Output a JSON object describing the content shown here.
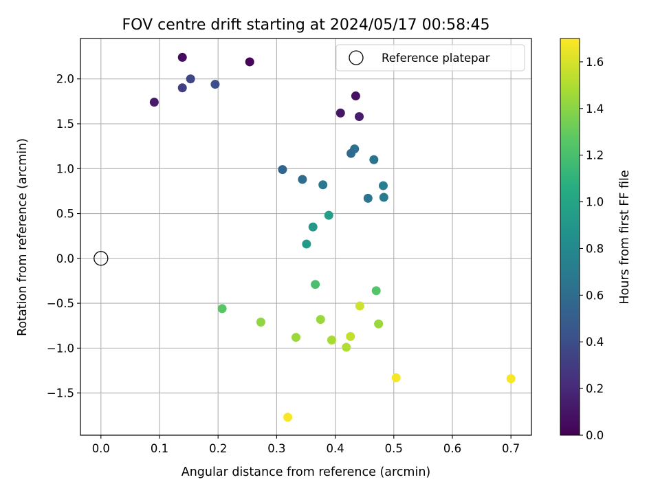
{
  "chart_data": {
    "type": "scatter",
    "title": "FOV centre drift starting at 2024/05/17 00:58:45",
    "xlabel": "Angular distance from reference (arcmin)",
    "ylabel": "Rotation from reference (arcmin)",
    "xlim": [
      -0.035,
      0.735
    ],
    "ylim": [
      -1.97,
      2.45
    ],
    "x_ticks": [
      0.0,
      0.1,
      0.2,
      0.3,
      0.4,
      0.5,
      0.6,
      0.7
    ],
    "x_tick_labels": [
      "0.0",
      "0.1",
      "0.2",
      "0.3",
      "0.4",
      "0.5",
      "0.6",
      "0.7"
    ],
    "y_ticks": [
      -1.5,
      -1.0,
      -0.5,
      0.0,
      0.5,
      1.0,
      1.5,
      2.0
    ],
    "y_tick_labels": [
      "−1.5",
      "−1.0",
      "−0.5",
      "0.0",
      "0.5",
      "1.0",
      "1.5",
      "2.0"
    ],
    "grid": true,
    "legend": {
      "entries": [
        "Reference platepar"
      ],
      "placement": "upper right"
    },
    "reference_point": {
      "x": 0.0,
      "y": 0.0,
      "label": "Reference platepar"
    },
    "colorbar": {
      "label": "Hours from first FF file",
      "colormap": "viridis",
      "range": [
        0.0,
        1.7
      ],
      "ticks": [
        0.0,
        0.2,
        0.4,
        0.6,
        0.8,
        1.0,
        1.2,
        1.4,
        1.6
      ],
      "tick_labels": [
        "0.0",
        "0.2",
        "0.4",
        "0.6",
        "0.8",
        "1.0",
        "1.2",
        "1.4",
        "1.6"
      ]
    },
    "points": [
      {
        "x": 0.139,
        "y": 2.24,
        "hours": 0.05
      },
      {
        "x": 0.254,
        "y": 2.19,
        "hours": 0.02
      },
      {
        "x": 0.091,
        "y": 1.74,
        "hours": 0.12
      },
      {
        "x": 0.435,
        "y": 1.81,
        "hours": 0.08
      },
      {
        "x": 0.409,
        "y": 1.62,
        "hours": 0.1
      },
      {
        "x": 0.441,
        "y": 1.58,
        "hours": 0.14
      },
      {
        "x": 0.139,
        "y": 1.9,
        "hours": 0.32
      },
      {
        "x": 0.153,
        "y": 2.0,
        "hours": 0.35
      },
      {
        "x": 0.195,
        "y": 1.94,
        "hours": 0.4
      },
      {
        "x": 0.433,
        "y": 1.22,
        "hours": 0.62
      },
      {
        "x": 0.427,
        "y": 1.17,
        "hours": 0.58
      },
      {
        "x": 0.466,
        "y": 1.1,
        "hours": 0.65
      },
      {
        "x": 0.31,
        "y": 0.99,
        "hours": 0.55
      },
      {
        "x": 0.344,
        "y": 0.88,
        "hours": 0.6
      },
      {
        "x": 0.379,
        "y": 0.82,
        "hours": 0.68
      },
      {
        "x": 0.482,
        "y": 0.81,
        "hours": 0.72
      },
      {
        "x": 0.456,
        "y": 0.67,
        "hours": 0.66
      },
      {
        "x": 0.483,
        "y": 0.68,
        "hours": 0.7
      },
      {
        "x": 0.389,
        "y": 0.48,
        "hours": 0.95
      },
      {
        "x": 0.362,
        "y": 0.35,
        "hours": 0.9
      },
      {
        "x": 0.351,
        "y": 0.16,
        "hours": 0.92
      },
      {
        "x": 0.366,
        "y": -0.29,
        "hours": 1.2
      },
      {
        "x": 0.47,
        "y": -0.36,
        "hours": 1.24
      },
      {
        "x": 0.207,
        "y": -0.56,
        "hours": 1.26
      },
      {
        "x": 0.442,
        "y": -0.53,
        "hours": 1.58
      },
      {
        "x": 0.273,
        "y": -0.71,
        "hours": 1.42
      },
      {
        "x": 0.375,
        "y": -0.68,
        "hours": 1.44
      },
      {
        "x": 0.474,
        "y": -0.73,
        "hours": 1.44
      },
      {
        "x": 0.333,
        "y": -0.88,
        "hours": 1.45
      },
      {
        "x": 0.394,
        "y": -0.91,
        "hours": 1.48
      },
      {
        "x": 0.426,
        "y": -0.87,
        "hours": 1.55
      },
      {
        "x": 0.419,
        "y": -0.99,
        "hours": 1.5
      },
      {
        "x": 0.504,
        "y": -1.33,
        "hours": 1.68
      },
      {
        "x": 0.7,
        "y": -1.34,
        "hours": 1.68
      },
      {
        "x": 0.319,
        "y": -1.77,
        "hours": 1.69
      }
    ]
  }
}
